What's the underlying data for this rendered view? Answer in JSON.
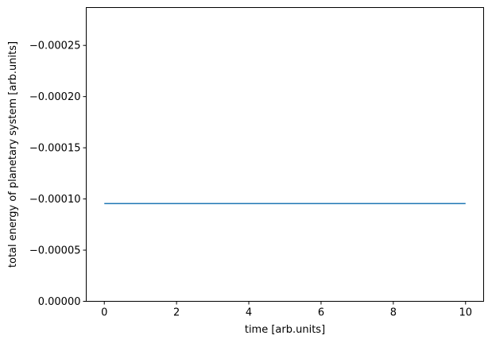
{
  "chart_data": {
    "type": "line",
    "title": "",
    "xlabel": "time [arb.units]",
    "ylabel": "total energy of planetary system [arb.units]",
    "xlim": [
      -0.5,
      10.5
    ],
    "ylim": [
      0.0,
      -0.000287
    ],
    "y_axis_inverted": true,
    "grid": false,
    "legend": "none",
    "x_ticks": [
      0,
      2,
      4,
      6,
      8,
      10
    ],
    "x_tick_labels": [
      "0",
      "2",
      "4",
      "6",
      "8",
      "10"
    ],
    "y_ticks": [
      0.0,
      -5e-05,
      -0.0001,
      -0.00015,
      -0.0002,
      -0.00025
    ],
    "y_tick_labels": [
      "0.00000",
      "−0.00005",
      "−0.00010",
      "−0.00015",
      "−0.00020",
      "−0.00025"
    ],
    "series": [
      {
        "color": "#1f77b4",
        "x": [
          0,
          10
        ],
        "y": [
          -9.55e-05,
          -9.55e-05
        ]
      }
    ]
  }
}
